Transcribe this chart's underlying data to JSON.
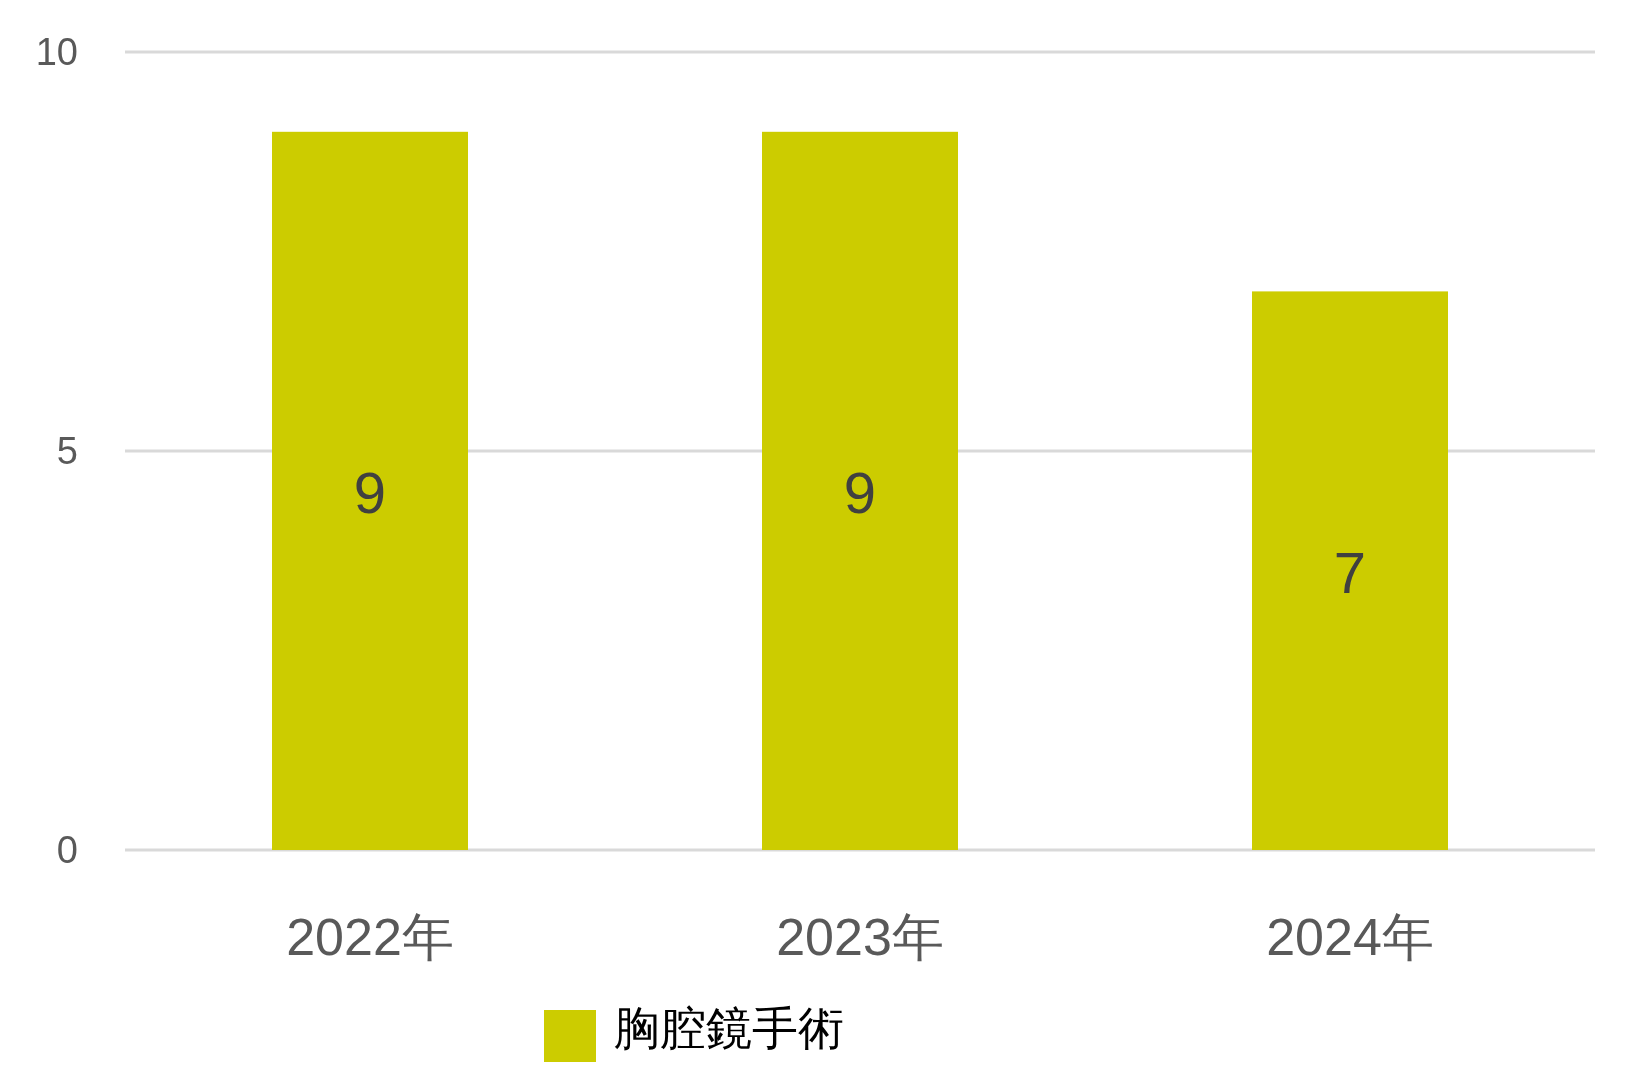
{
  "chart_data": {
    "type": "bar",
    "categories": [
      "2022年",
      "2023年",
      "2024年"
    ],
    "series": [
      {
        "name": "胸腔鏡手術",
        "color": "#cccc00",
        "values": [
          9,
          9,
          7
        ]
      }
    ],
    "ylim": [
      0,
      10
    ],
    "yticks": [
      0,
      5,
      10
    ],
    "grid": "y",
    "legend": "bottom",
    "data_labels": true
  }
}
